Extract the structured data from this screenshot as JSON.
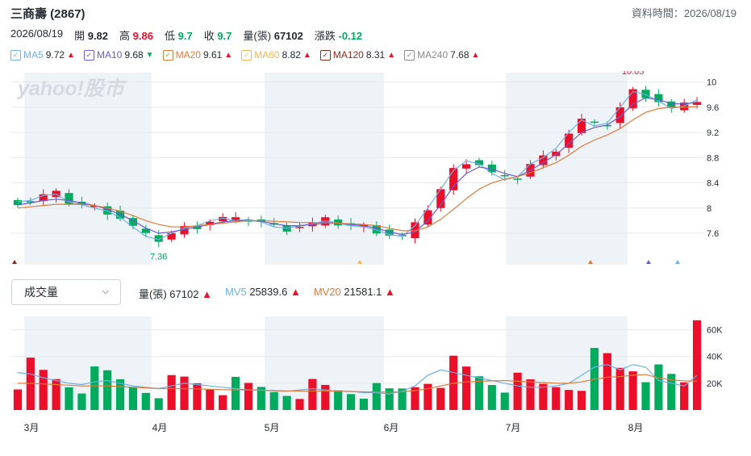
{
  "header": {
    "title": "三商壽 (2867)",
    "data_time_label": "資料時間：2026/08/19"
  },
  "quote": {
    "date": "2026/08/19",
    "open_label": "開",
    "open": "9.82",
    "high_label": "高",
    "high": "9.86",
    "low_label": "低",
    "low": "9.7",
    "close_label": "收",
    "close": "9.7",
    "volume_label": "量(張)",
    "volume": "67102",
    "change_label": "漲跌",
    "change": "-0.12"
  },
  "ma_legend": [
    {
      "label": "MA5",
      "value": "9.72",
      "color": "#6cb2e8",
      "arrow": "▲",
      "dir": "up"
    },
    {
      "label": "MA10",
      "value": "9.68",
      "color": "#6d5bd0",
      "arrow": "▼",
      "dir": "down"
    },
    {
      "label": "MA20",
      "value": "9.61",
      "color": "#e07a3a",
      "arrow": "▲",
      "dir": "up"
    },
    {
      "label": "MA60",
      "value": "8.82",
      "color": "#f0b85a",
      "arrow": "▲",
      "dir": "up"
    },
    {
      "label": "MA120",
      "value": "8.31",
      "color": "#8f2a1a",
      "arrow": "▲",
      "dir": "up"
    },
    {
      "label": "MA240",
      "value": "7.68",
      "color": "#8a8a8a",
      "arrow": "▲",
      "dir": "up"
    }
  ],
  "watermark": "yahoo!股市",
  "volume_panel": {
    "selector_label": "成交量",
    "volume_label": "量(張)",
    "volume_value": "67102",
    "mv5_label": "MV5",
    "mv5_value": "25839.6",
    "mv20_label": "MV20",
    "mv20_value": "21581.1",
    "arrow": "▲"
  },
  "colors": {
    "up": "#eb0f29",
    "down": "#00ab5e",
    "ma5": "#6cb2e8",
    "ma10": "#6d5bd0",
    "ma20": "#e07a3a",
    "mv5": "#6cb2e8",
    "mv20": "#e07a3a",
    "band": "#eef3f8",
    "grid": "#e6e8ea"
  },
  "chart_data": [
    {
      "type": "candlestick",
      "y_ticks": [
        "10",
        "9.6",
        "9.2",
        "8.8",
        "8.4",
        "8",
        "7.6"
      ],
      "ylim": [
        7.1,
        10.15
      ],
      "x_ticks": [
        "3月",
        "4月",
        "5月",
        "6月",
        "7月",
        "8月"
      ],
      "annotations": [
        {
          "text": "10.05",
          "kind": "high"
        },
        {
          "text": "7.36",
          "kind": "low"
        }
      ],
      "series": [
        {
          "name": "MA5",
          "values": [
            8.1,
            8.12,
            8.2,
            8.22,
            8.1,
            8.05,
            8.0,
            7.95,
            7.85,
            7.7,
            7.55,
            7.5,
            7.6,
            7.68,
            7.72,
            7.8,
            7.84,
            7.8,
            7.82,
            7.78,
            7.7,
            7.68,
            7.72,
            7.75,
            7.8,
            7.76,
            7.72,
            7.7,
            7.65,
            7.58,
            7.55,
            7.72,
            8.0,
            8.3,
            8.6,
            8.75,
            8.7,
            8.55,
            8.45,
            8.5,
            8.7,
            8.8,
            8.95,
            9.2,
            9.4,
            9.3,
            9.35,
            9.6,
            9.85,
            9.8,
            9.7,
            9.58,
            9.62,
            9.72
          ]
        },
        {
          "name": "MA10",
          "values": [
            8.05,
            8.08,
            8.12,
            8.14,
            8.12,
            8.08,
            8.04,
            7.98,
            7.9,
            7.8,
            7.68,
            7.6,
            7.62,
            7.66,
            7.7,
            7.74,
            7.78,
            7.8,
            7.8,
            7.79,
            7.75,
            7.72,
            7.72,
            7.74,
            7.76,
            7.76,
            7.74,
            7.72,
            7.68,
            7.62,
            7.58,
            7.62,
            7.8,
            8.05,
            8.35,
            8.55,
            8.65,
            8.62,
            8.55,
            8.5,
            8.6,
            8.72,
            8.85,
            9.02,
            9.2,
            9.28,
            9.32,
            9.45,
            9.65,
            9.75,
            9.72,
            9.66,
            9.65,
            9.68
          ]
        },
        {
          "name": "MA20",
          "values": [
            8.0,
            8.02,
            8.04,
            8.06,
            8.06,
            8.06,
            8.04,
            8.0,
            7.95,
            7.88,
            7.8,
            7.74,
            7.7,
            7.7,
            7.72,
            7.74,
            7.76,
            7.78,
            7.8,
            7.8,
            7.79,
            7.78,
            7.77,
            7.77,
            7.77,
            7.76,
            7.75,
            7.74,
            7.72,
            7.68,
            7.64,
            7.64,
            7.7,
            7.82,
            7.98,
            8.15,
            8.3,
            8.4,
            8.46,
            8.5,
            8.56,
            8.64,
            8.72,
            8.84,
            8.98,
            9.08,
            9.16,
            9.26,
            9.4,
            9.52,
            9.58,
            9.6,
            9.6,
            9.61
          ]
        }
      ]
    },
    {
      "type": "bar",
      "name": "Volume",
      "y_ticks": [
        "60K",
        "40K",
        "20K"
      ],
      "ylim": [
        0,
        70000
      ],
      "last_value": 67102,
      "series": [
        {
          "name": "MV5",
          "values": [
            28000,
            27000,
            24000,
            22000,
            20000,
            19000,
            21000,
            22000,
            20000,
            18000,
            17000,
            16000,
            18000,
            20000,
            19000,
            18000,
            17000,
            16000,
            15000,
            15000,
            14000,
            14000,
            15000,
            16000,
            15000,
            14000,
            14000,
            13000,
            13000,
            12000,
            14000,
            18000,
            26000,
            30000,
            28000,
            26000,
            24000,
            22000,
            20000,
            18000,
            17000,
            17000,
            18000,
            20000,
            26000,
            32000,
            34000,
            30000,
            34000,
            32000,
            22000,
            20000,
            18000,
            25840
          ]
        },
        {
          "name": "MV20",
          "values": [
            20000,
            20000,
            19500,
            19000,
            18500,
            18000,
            18000,
            18000,
            17500,
            17000,
            16500,
            16000,
            16000,
            16000,
            15800,
            15500,
            15200,
            15000,
            15000,
            14800,
            14500,
            14300,
            14200,
            14200,
            14200,
            14000,
            13800,
            13600,
            13500,
            13400,
            13600,
            14500,
            16000,
            18000,
            20000,
            21000,
            21500,
            21800,
            22000,
            21500,
            21000,
            20500,
            20000,
            20000,
            21000,
            23000,
            24500,
            25000,
            26000,
            26500,
            24000,
            22500,
            21800,
            21581
          ]
        }
      ]
    }
  ]
}
